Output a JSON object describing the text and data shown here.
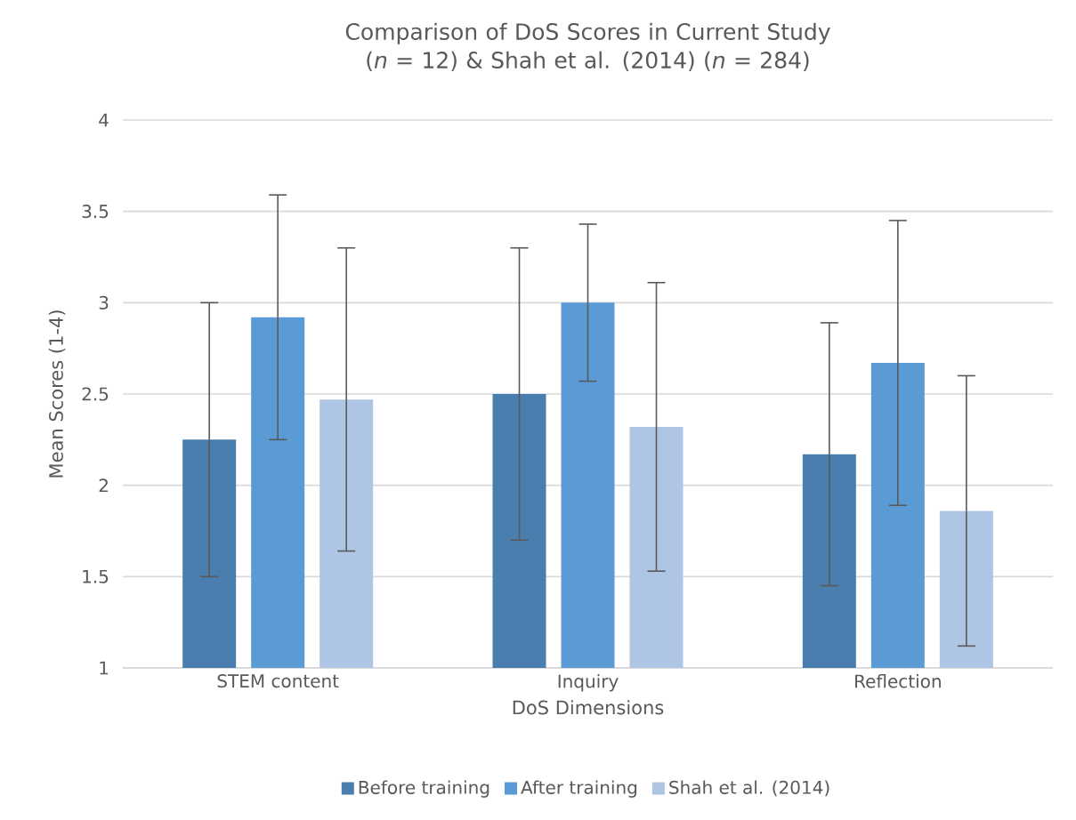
{
  "chart_data": {
    "type": "bar",
    "title": "Comparison of DoS Scores in Current Study (*n* = 12) & Shah et al. (2014) (*n* = 284)",
    "xlabel": "DoS Dimensions",
    "ylabel": "Mean Scores (1-4)",
    "categories": [
      "STEM content",
      "Inquiry",
      "Reflection"
    ],
    "series": [
      {
        "name": "Before training",
        "color": "#4a7eae",
        "values": [
          2.25,
          2.5,
          2.17
        ],
        "errors": [
          0.75,
          0.8,
          0.72
        ]
      },
      {
        "name": "After training",
        "color": "#5b9bd5",
        "values": [
          2.92,
          3.0,
          2.67
        ],
        "errors": [
          0.67,
          0.43,
          0.78
        ]
      },
      {
        "name": "Shah et al. (2014)",
        "color": "#aec5e5",
        "values": [
          2.47,
          2.32,
          1.86
        ],
        "errors": [
          0.83,
          0.79,
          0.74
        ]
      }
    ],
    "ylim": [
      1,
      4
    ],
    "yticks": [
      1,
      1.5,
      2,
      2.5,
      3,
      3.5,
      4
    ],
    "grid": "y",
    "legend": "bottom"
  }
}
